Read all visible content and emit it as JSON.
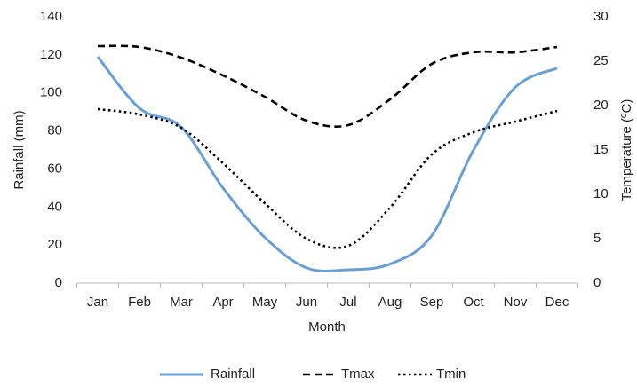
{
  "chart_data": {
    "type": "line",
    "x_label": "Month",
    "y_label": "Rainfall (mm)",
    "y2_label": "Temperature (ºC)",
    "categories": [
      "Jan",
      "Feb",
      "Mar",
      "Apr",
      "May",
      "Jun",
      "Jul",
      "Aug",
      "Sep",
      "Oct",
      "Nov",
      "Dec"
    ],
    "ylim": [
      0,
      140
    ],
    "yticks": [
      0,
      20,
      40,
      60,
      80,
      100,
      120,
      140
    ],
    "y2lim": [
      0,
      30
    ],
    "y2ticks": [
      0,
      5,
      10,
      15,
      20,
      25,
      30
    ],
    "legend": "bottom",
    "series": [
      {
        "name": "Rainfall",
        "color": "#6a9fd4",
        "style": "solid",
        "values": [
          119,
          92,
          82,
          50,
          24,
          8,
          7,
          10,
          25,
          70,
          103,
          113
        ]
      },
      {
        "name": "Tmax",
        "color": "#000000",
        "style": "dashed",
        "axis": "y2",
        "values": [
          26.7,
          26.6,
          25.4,
          23.4,
          21,
          18.3,
          17.8,
          20.7,
          24.7,
          26,
          26,
          26.6
        ]
      },
      {
        "name": "Tmin",
        "color": "#000000",
        "style": "dotted",
        "axis": "y2",
        "values": [
          19.6,
          19,
          17.5,
          13.5,
          9,
          5,
          4.2,
          8.5,
          14.5,
          17,
          18.2,
          19.4
        ]
      }
    ]
  }
}
